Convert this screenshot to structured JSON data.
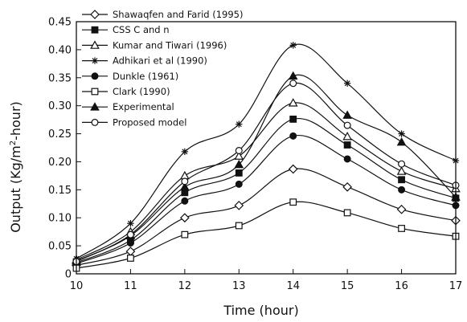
{
  "chart_data": {
    "type": "line",
    "xlabel": "Time (hour)",
    "ylabel_parts": [
      "Output (Kg/m",
      "2",
      "-hour)"
    ],
    "x": [
      10,
      11,
      12,
      13,
      14,
      15,
      16,
      17
    ],
    "xlim": [
      10,
      17
    ],
    "ylim": [
      0,
      0.45
    ],
    "x_ticks": [
      "10",
      "11",
      "12",
      "13",
      "14",
      "15",
      "16",
      "17"
    ],
    "y_ticks": [
      {
        "value": 0,
        "label": "0"
      },
      {
        "value": 0.05,
        "label": "0.05"
      },
      {
        "value": 0.1,
        "label": "0.10"
      },
      {
        "value": 0.15,
        "label": "0.15"
      },
      {
        "value": 0.2,
        "label": "0.20"
      },
      {
        "value": 0.25,
        "label": "0.25"
      },
      {
        "value": 0.3,
        "label": "0.30"
      },
      {
        "value": 0.35,
        "label": "0.35"
      },
      {
        "value": 0.4,
        "label": "0.40"
      },
      {
        "value": 0.45,
        "label": "0.45"
      }
    ],
    "legend_position": "top-left",
    "grid": false,
    "series": [
      {
        "name": "Shawaqfen and Farid (1995)",
        "marker": "diamond-open",
        "values": [
          0.015,
          0.04,
          0.1,
          0.122,
          0.187,
          0.155,
          0.115,
          0.095
        ]
      },
      {
        "name": "CSS C and n",
        "marker": "square-filled",
        "values": [
          0.02,
          0.06,
          0.145,
          0.18,
          0.276,
          0.23,
          0.168,
          0.135
        ]
      },
      {
        "name": "Kumar and Tiwari (1996)",
        "marker": "triangle-open",
        "values": [
          0.025,
          0.075,
          0.175,
          0.21,
          0.305,
          0.245,
          0.183,
          0.152
        ]
      },
      {
        "name": "Adhikari et al (1990)",
        "marker": "star",
        "values": [
          0.027,
          0.09,
          0.218,
          0.267,
          0.408,
          0.34,
          0.25,
          0.202
        ]
      },
      {
        "name": "Dunkle (1961)",
        "marker": "circle-filled",
        "values": [
          0.018,
          0.055,
          0.13,
          0.16,
          0.246,
          0.205,
          0.15,
          0.122
        ]
      },
      {
        "name": "Clark (1990)",
        "marker": "square-open",
        "values": [
          0.01,
          0.028,
          0.07,
          0.086,
          0.128,
          0.109,
          0.081,
          0.067
        ]
      },
      {
        "name": "Experimental",
        "marker": "triangle-filled",
        "values": [
          0.023,
          0.068,
          0.155,
          0.195,
          0.353,
          0.283,
          0.235,
          0.137
        ]
      },
      {
        "name": "Proposed model",
        "marker": "circle-open",
        "values": [
          0.022,
          0.07,
          0.165,
          0.22,
          0.34,
          0.265,
          0.196,
          0.158
        ]
      }
    ]
  }
}
